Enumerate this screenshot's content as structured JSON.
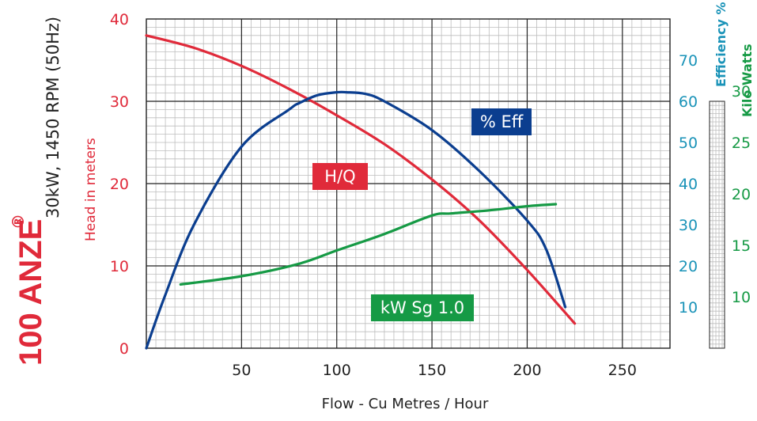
{
  "model": "100 ANZE",
  "model_mark": "®",
  "spec": "30kW, 1450 RPM (50Hz)",
  "colors": {
    "head": "#e02a3a",
    "efficiency": "#0b3e8f",
    "power": "#169a45",
    "eff_axis": "#1a93b8",
    "grid_major": "#222222",
    "grid_minor": "#bdbdbd"
  },
  "chart_data": {
    "type": "line",
    "xlabel": "Flow - Cu Metres / Hour",
    "x_ticks": [
      "50",
      "100",
      "150",
      "200",
      "250"
    ],
    "xlim": [
      0,
      275
    ],
    "axes": {
      "head": {
        "label": "Head in meters",
        "ylim": [
          0,
          40
        ],
        "ticks": [
          "0",
          "10",
          "20",
          "30",
          "40"
        ]
      },
      "efficiency": {
        "label": "Efficiency %",
        "ylim": [
          0,
          80
        ],
        "ticks": [
          "10",
          "20",
          "30",
          "40",
          "50",
          "60",
          "70"
        ]
      },
      "power": {
        "label": "Kilo Watts",
        "ylim": [
          5,
          37
        ],
        "ticks": [
          "10",
          "15",
          "20",
          "25",
          "30"
        ]
      }
    },
    "series": [
      {
        "name": "H/Q",
        "axis": "head",
        "color": "#e02a3a",
        "x": [
          0,
          25,
          50,
          75,
          100,
          125,
          150,
          175,
          200,
          225
        ],
        "y": [
          38,
          36.5,
          34.3,
          31.5,
          28.3,
          24.8,
          20.5,
          15.5,
          9.5,
          3.0
        ]
      },
      {
        "name": "% Eff",
        "axis": "efficiency",
        "color": "#0b3e8f",
        "x": [
          0,
          10,
          25,
          50,
          75,
          80,
          90,
          100,
          105,
          115,
          125,
          150,
          175,
          200,
          210,
          220
        ],
        "y": [
          0,
          13,
          30,
          49,
          58,
          59.5,
          61.5,
          62.2,
          62.2,
          61.8,
          60,
          53,
          43,
          31,
          24,
          10
        ]
      },
      {
        "name": "kW Sg 1.0",
        "axis": "power",
        "color": "#169a45",
        "x": [
          18,
          50,
          80,
          100,
          125,
          150,
          160,
          180,
          200,
          215
        ],
        "y": [
          11.2,
          12,
          13.2,
          14.5,
          16.1,
          17.9,
          18.1,
          18.4,
          18.8,
          19
        ]
      }
    ]
  }
}
